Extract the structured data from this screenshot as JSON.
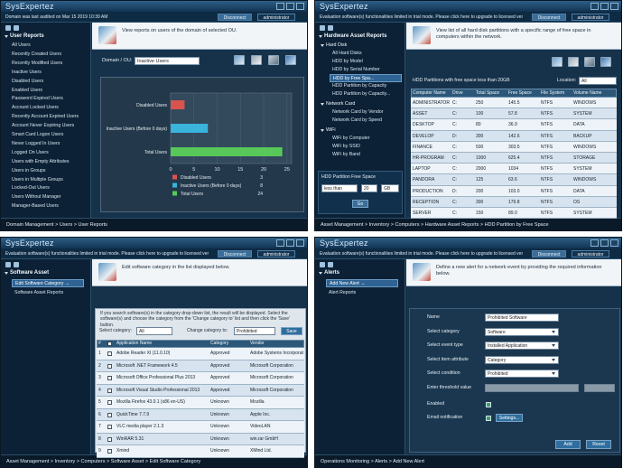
{
  "panels": [
    {
      "logo": "SysExpertez",
      "notice": "Domain was last audited on Mar 15 2019 10:39 AM",
      "buttons": [
        "Disconnect",
        "administrator"
      ],
      "sidebar": {
        "title": "User Reports",
        "items": [
          "All Users",
          "Recently Created Users",
          "Recently Modified Users",
          "Inactive Users",
          "Disabled Users",
          "Enabled Users",
          "Password Expired Users",
          "Account Locked Users",
          "Recently Account Expired Users",
          "Account Never Expiring Users",
          "Smart Card Logon Users",
          "Never Logged In Users",
          "Logged On Users",
          "Users with Empty Attributes",
          "Users in Groups",
          "Users in Multiple Groups",
          "Locked-Out Users",
          "Users Without Manager",
          "Manager-Based Users"
        ]
      },
      "intro": "View reports on users of the domain of selected OU.",
      "field": {
        "label": "Domain / OU:",
        "value": "Inactive Users"
      },
      "chart": {
        "type": "bar",
        "categories": [
          "Disabled Users",
          "Inactive Users (Before 0 days)",
          "Total Users"
        ],
        "values": [
          3,
          8,
          24
        ],
        "colors": [
          "#d9534f",
          "#3bb4dc",
          "#58c85a"
        ],
        "xlim": [
          0,
          26
        ],
        "xticks": [
          0,
          5,
          10,
          15,
          20,
          25
        ]
      },
      "breadcrumb": "Domain Management > Users > User Reports"
    },
    {
      "logo": "SysExpertez",
      "notice": "Evaluation software(s) functionalities limited in trial mode. Please click here to upgrade to licensed version.",
      "buttons": [
        "Disconnect",
        "administrator"
      ],
      "sidebar": {
        "title": "Hardware Asset Reports",
        "groups": [
          {
            "title": "Hard Disk",
            "items": [
              "All Hard Disks",
              "HDD by Model",
              "HDD by Serial Number",
              {
                "text": "HDD by Free Spa...",
                "selected": true
              },
              "HDD Partition by Capacity",
              "HDD Partition by Capacity..."
            ]
          },
          {
            "title": "Network Card",
            "items": [
              "Network Card by Vendor",
              "Network Card by Speed"
            ]
          },
          {
            "title": "WiFi",
            "items": [
              "WiFi by Computer",
              "WiFi by SSID",
              "WiFi by Band"
            ]
          }
        ],
        "form": {
          "label": "HDD Partition Free Space",
          "condition": "less than",
          "amount": "20",
          "unit": "GB",
          "button": "Go"
        }
      },
      "intro": "View list of all hard disk partitions with a specific range of free space in computers within the network.",
      "table": {
        "caption": "HDD Partitions with free space less than 20GB",
        "location_label": "Location:",
        "location": "All",
        "columns": [
          "Computer Name",
          "Drive",
          "Total Space",
          "Free Space",
          "File System",
          "Volume Name"
        ],
        "rows": [
          [
            "ADMINISTRATOR",
            "C:",
            "250",
            "145.5",
            "NTFS",
            "WINDOWS"
          ],
          [
            "ASSET",
            "C:",
            "100",
            "57.8",
            "NTFS",
            "SYSTEM"
          ],
          [
            "DESKTOP",
            "C:",
            "80",
            "36.9",
            "NTFS",
            "DATA"
          ],
          [
            "DEVELOP",
            "D:",
            "300",
            "142.6",
            "NTFS",
            "BACKUP"
          ],
          [
            "FINANCE",
            "C:",
            "500",
            "303.5",
            "NTFS",
            "WINDOWS"
          ],
          [
            "HR-PROGRAM",
            "C:",
            "1000",
            "625.4",
            "NTFS",
            "STORAGE"
          ],
          [
            "LAPTOP",
            "C:",
            "2000",
            "1034",
            "NTFS",
            "SYSTEM"
          ],
          [
            "PANDORA",
            "C:",
            "125",
            "63.6",
            "NTFS",
            "WINDOWS"
          ],
          [
            "PRODUCTION",
            "D:",
            "200",
            "103.0",
            "NTFS",
            "DATA"
          ],
          [
            "RECEPTION",
            "C:",
            "300",
            "179.8",
            "NTFS",
            "OS"
          ],
          [
            "SERVER",
            "C:",
            "150",
            "89.0",
            "NTFS",
            "SYSTEM"
          ]
        ]
      },
      "breadcrumb": "Asset Management > Inventory > Computers > Hardware Asset Reports > HDD Partition by Free Space"
    },
    {
      "logo": "SysExpertez",
      "notice": "Evaluation software(s) functionalities limited in trial mode. Please click here to upgrade to licensed version.",
      "buttons": [
        "Disconnect",
        "administrator"
      ],
      "sidebar": {
        "title": "Software Asset",
        "items": [
          {
            "text": "Edit Software Category →",
            "selected": true
          },
          "Software Asset Reports"
        ]
      },
      "intro": "Edit software category in the list displayed below.",
      "description": "If you search software(s) in the category drop-down list, the result will be displayed. Select the software(s) and choose the category from the 'Change category to' list and then click the 'Save' button.",
      "controls": {
        "select_label": "Select category:",
        "select_value": "All",
        "change_label": "Change category to:",
        "change_value": "Prohibited",
        "save": "Save"
      },
      "table": {
        "columns": [
          "#",
          "Application Name",
          "Category",
          "Vendor"
        ],
        "rows": [
          [
            "1",
            "Adobe Reader XI (11.0.10)",
            "Approved",
            "Adobe Systems Incorporated"
          ],
          [
            "2",
            "Microsoft .NET Framework 4.5",
            "Approved",
            "Microsoft Corporation"
          ],
          [
            "3",
            "Microsoft Office Professional Plus 2013",
            "Approved",
            "Microsoft Corporation"
          ],
          [
            "4",
            "Microsoft Visual Studio Professional 2013",
            "Approved",
            "Microsoft Corporation"
          ],
          [
            "5",
            "Mozilla Firefox 43.0.1 (x86 en-US)",
            "Unknown",
            "Mozilla"
          ],
          [
            "6",
            "QuickTime 7.7.9",
            "Unknown",
            "Apple Inc."
          ],
          [
            "7",
            "VLC media player 2.1.3",
            "Unknown",
            "VideoLAN"
          ],
          [
            "8",
            "WinRAR 5.31",
            "Unknown",
            "win.rar GmbH"
          ],
          [
            "9",
            "Xmind",
            "Unknown",
            "XMind Ltd."
          ]
        ]
      },
      "breadcrumb": "Asset Management > Inventory > Computers > Software Asset > Edit Software Category"
    },
    {
      "logo": "SysExpertez",
      "notice": "Evaluation software(s) functionalities limited in trial mode. Please click here to upgrade to licensed version.",
      "buttons": [
        "Disconnect",
        "administrator"
      ],
      "sidebar": {
        "title": "Alerts",
        "items": [
          {
            "text": "Add New Alert →",
            "selected": true
          },
          "Alert Reports"
        ]
      },
      "intro": "Define a new alert for a network event by providing the required information below.",
      "form": {
        "fields": [
          {
            "label": "Name",
            "value": "Prohibited Software",
            "kind": "text"
          },
          {
            "label": "Select category",
            "value": "Software",
            "kind": "select"
          },
          {
            "label": "Select event type",
            "value": "Installed Application",
            "kind": "select"
          },
          {
            "label": "Select item attribute",
            "value": "Category",
            "kind": "select"
          },
          {
            "label": "Select condition",
            "value": "Prohibited",
            "kind": "select"
          },
          {
            "label": "Enter threshold value",
            "kind": "disabled"
          }
        ],
        "checks": [
          {
            "label": "Enabled",
            "checked": true
          },
          {
            "label": "Email notification",
            "checked": true,
            "button": "Settings..."
          }
        ],
        "buttons": [
          "Add",
          "Reset"
        ]
      },
      "breadcrumb": "Operations Monitoring > Alerts > Add New Alert"
    }
  ]
}
